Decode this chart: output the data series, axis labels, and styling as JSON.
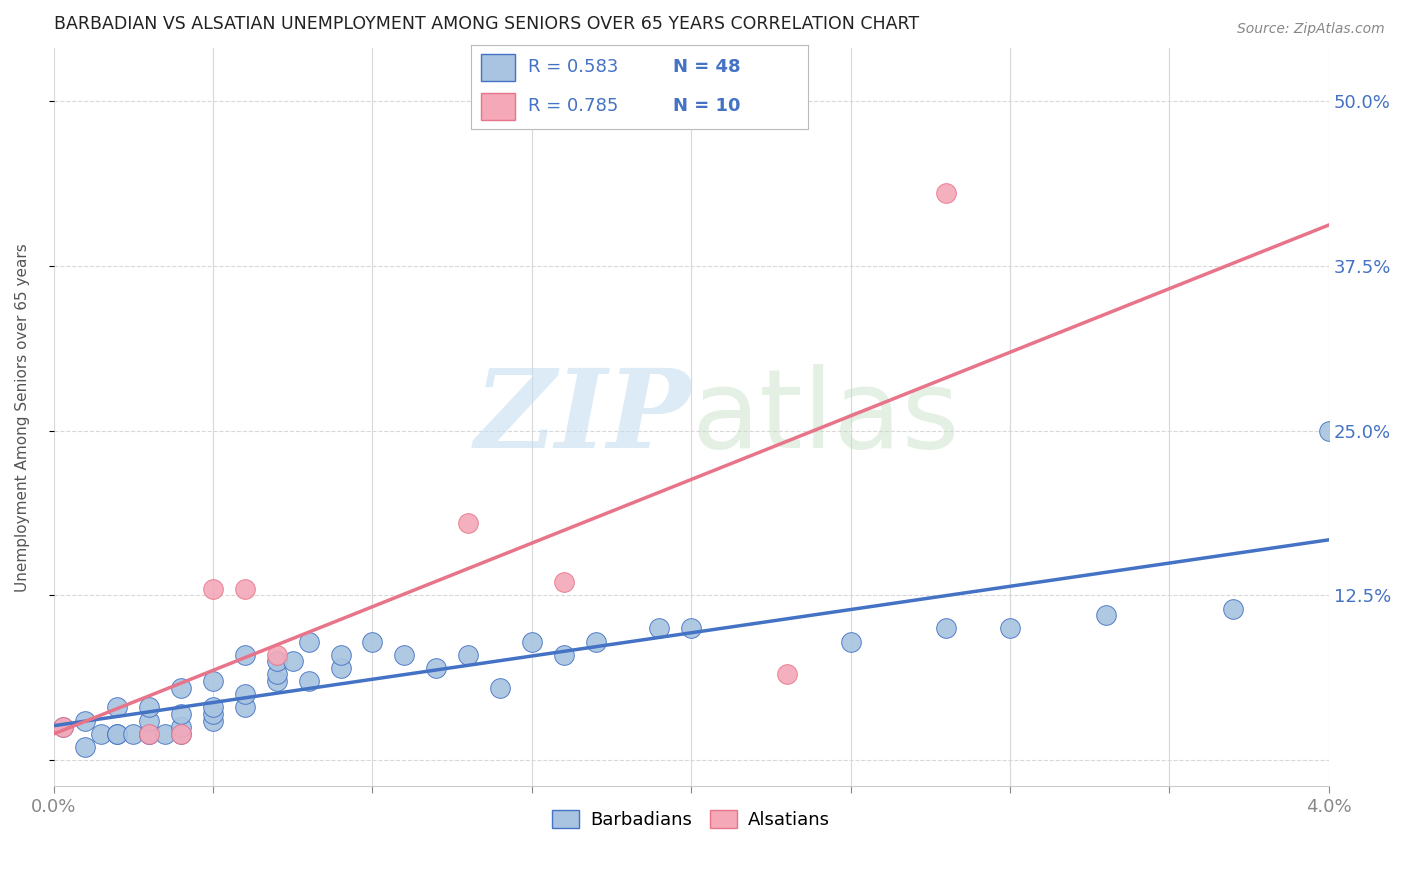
{
  "title": "BARBADIAN VS ALSATIAN UNEMPLOYMENT AMONG SENIORS OVER 65 YEARS CORRELATION CHART",
  "source": "Source: ZipAtlas.com",
  "ylabel": "Unemployment Among Seniors over 65 years",
  "xlim": [
    0.0,
    0.04
  ],
  "ylim": [
    -0.02,
    0.54
  ],
  "xticks": [
    0.0,
    0.005,
    0.01,
    0.015,
    0.02,
    0.025,
    0.03,
    0.035,
    0.04
  ],
  "ytick_positions": [
    0.0,
    0.125,
    0.25,
    0.375,
    0.5
  ],
  "ytick_labels": [
    "",
    "12.5%",
    "25.0%",
    "37.5%",
    "50.0%"
  ],
  "background_color": "#ffffff",
  "grid_color": "#d8d8d8",
  "barbadian_color": "#a8c4e0",
  "alsatian_color": "#f4a8b8",
  "barbadian_line_color": "#4472c4",
  "alsatian_line_color": "#e8748a",
  "legend_R_color": "#4472c4",
  "barbadian_R": 0.583,
  "barbadian_N": 48,
  "alsatian_R": 0.785,
  "alsatian_N": 10,
  "barbadian_x": [
    0.0003,
    0.001,
    0.001,
    0.0015,
    0.002,
    0.002,
    0.002,
    0.0025,
    0.003,
    0.003,
    0.003,
    0.003,
    0.0035,
    0.004,
    0.004,
    0.004,
    0.004,
    0.005,
    0.005,
    0.005,
    0.005,
    0.006,
    0.006,
    0.006,
    0.007,
    0.007,
    0.007,
    0.0075,
    0.008,
    0.008,
    0.009,
    0.009,
    0.01,
    0.011,
    0.012,
    0.013,
    0.014,
    0.015,
    0.016,
    0.017,
    0.019,
    0.02,
    0.025,
    0.028,
    0.03,
    0.033,
    0.037,
    0.04
  ],
  "barbadian_y": [
    0.025,
    0.01,
    0.03,
    0.02,
    0.02,
    0.02,
    0.04,
    0.02,
    0.02,
    0.02,
    0.03,
    0.04,
    0.02,
    0.02,
    0.025,
    0.035,
    0.055,
    0.03,
    0.035,
    0.04,
    0.06,
    0.04,
    0.05,
    0.08,
    0.06,
    0.065,
    0.075,
    0.075,
    0.06,
    0.09,
    0.07,
    0.08,
    0.09,
    0.08,
    0.07,
    0.08,
    0.055,
    0.09,
    0.08,
    0.09,
    0.1,
    0.1,
    0.09,
    0.1,
    0.1,
    0.11,
    0.115,
    0.25
  ],
  "alsatian_x": [
    0.0003,
    0.003,
    0.004,
    0.005,
    0.006,
    0.007,
    0.013,
    0.016,
    0.023,
    0.028
  ],
  "alsatian_y": [
    0.025,
    0.02,
    0.02,
    0.13,
    0.13,
    0.08,
    0.18,
    0.135,
    0.065,
    0.43
  ]
}
